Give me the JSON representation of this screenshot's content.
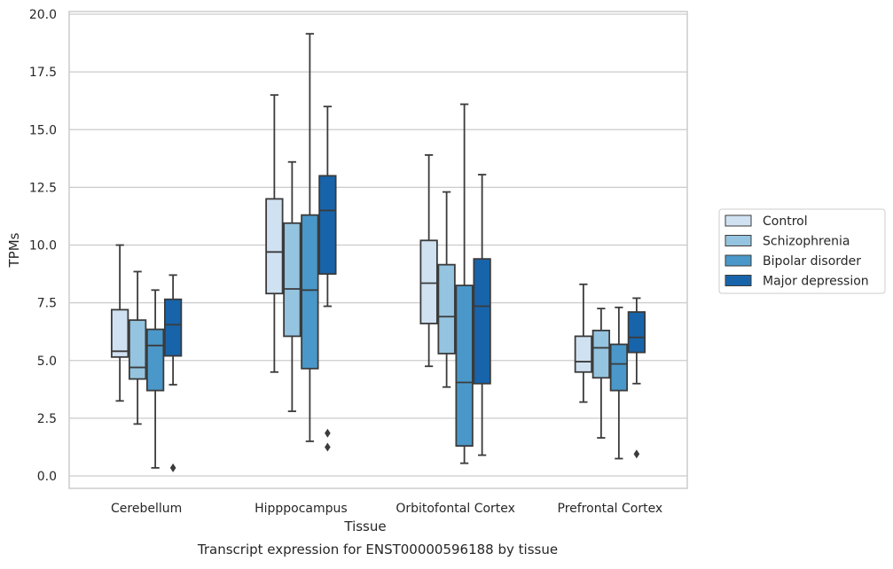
{
  "chart_data": {
    "type": "box",
    "title": "",
    "caption": "Transcript expression for ENST00000596188 by tissue",
    "xlabel": "Tissue",
    "ylabel": "TPMs",
    "ylim": [
      -0.5,
      20.1
    ],
    "yticks": [
      "0.0",
      "2.5",
      "5.0",
      "7.5",
      "10.0",
      "12.5",
      "15.0",
      "17.5",
      "20.0"
    ],
    "ytick_values": [
      0,
      2.5,
      5,
      7.5,
      10,
      12.5,
      15,
      17.5,
      20
    ],
    "grid": "horizontal",
    "legend_position": "outside-right",
    "categories": [
      "Cerebellum",
      "Hipppocampus",
      "Orbitofontal Cortex",
      "Prefrontal Cortex"
    ],
    "series": [
      {
        "name": "Control",
        "color": "#d0e1f2",
        "boxes": [
          {
            "whislo": 3.25,
            "q1": 5.15,
            "med": 5.4,
            "q3": 7.2,
            "whishi": 10.0,
            "fliers": []
          },
          {
            "whislo": 4.5,
            "q1": 7.9,
            "med": 9.7,
            "q3": 12.0,
            "whishi": 16.5,
            "fliers": []
          },
          {
            "whislo": 4.75,
            "q1": 6.6,
            "med": 8.35,
            "q3": 10.2,
            "whishi": 13.9,
            "fliers": []
          },
          {
            "whislo": 3.2,
            "q1": 4.5,
            "med": 4.95,
            "q3": 6.05,
            "whishi": 8.3,
            "fliers": []
          }
        ]
      },
      {
        "name": "Schizophrenia",
        "color": "#94c4df",
        "boxes": [
          {
            "whislo": 2.25,
            "q1": 4.2,
            "med": 4.7,
            "q3": 6.75,
            "whishi": 8.85,
            "fliers": []
          },
          {
            "whislo": 2.8,
            "q1": 6.05,
            "med": 8.1,
            "q3": 10.95,
            "whishi": 13.6,
            "fliers": []
          },
          {
            "whislo": 3.85,
            "q1": 5.3,
            "med": 6.9,
            "q3": 9.15,
            "whishi": 12.3,
            "fliers": []
          },
          {
            "whislo": 1.65,
            "q1": 4.25,
            "med": 5.55,
            "q3": 6.3,
            "whishi": 7.25,
            "fliers": []
          }
        ]
      },
      {
        "name": "Bipolar disorder",
        "color": "#4a98c9",
        "boxes": [
          {
            "whislo": 0.35,
            "q1": 3.7,
            "med": 5.65,
            "q3": 6.35,
            "whishi": 8.05,
            "fliers": []
          },
          {
            "whislo": 1.5,
            "q1": 4.65,
            "med": 8.05,
            "q3": 11.3,
            "whishi": 19.15,
            "fliers": []
          },
          {
            "whislo": 0.55,
            "q1": 1.3,
            "med": 4.05,
            "q3": 8.25,
            "whishi": 16.1,
            "fliers": []
          },
          {
            "whislo": 0.75,
            "q1": 3.7,
            "med": 4.85,
            "q3": 5.7,
            "whishi": 7.3,
            "fliers": []
          }
        ]
      },
      {
        "name": "Major depression",
        "color": "#1764ab",
        "boxes": [
          {
            "whislo": 3.95,
            "q1": 5.2,
            "med": 6.55,
            "q3": 7.65,
            "whishi": 8.7,
            "fliers": [
              0.35
            ]
          },
          {
            "whislo": 7.35,
            "q1": 8.75,
            "med": 11.5,
            "q3": 13.0,
            "whishi": 16.0,
            "fliers": [
              1.85,
              1.25
            ]
          },
          {
            "whislo": 0.9,
            "q1": 4.0,
            "med": 7.35,
            "q3": 9.4,
            "whishi": 13.05,
            "fliers": []
          },
          {
            "whislo": 4.0,
            "q1": 5.35,
            "med": 6.0,
            "q3": 7.1,
            "whishi": 7.7,
            "fliers": [
              0.95
            ]
          }
        ]
      }
    ]
  }
}
